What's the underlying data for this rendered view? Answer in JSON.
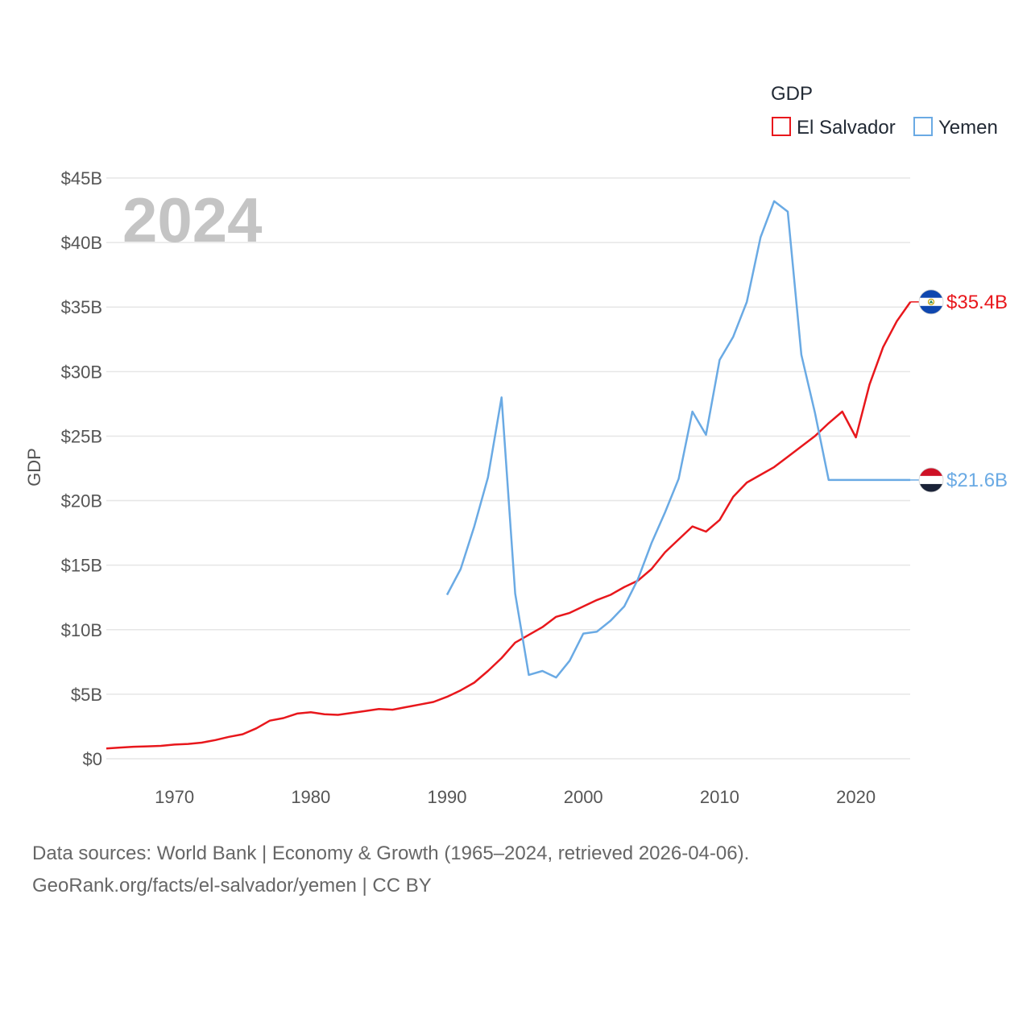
{
  "chart_data": {
    "type": "line",
    "title": "",
    "ylabel": "GDP",
    "xlabel": "",
    "year_display": "2024",
    "legend_title": "GDP",
    "ylim": [
      0,
      45
    ],
    "xlim": [
      1965,
      2024
    ],
    "y_ticks": [
      {
        "value": 0,
        "label": "$0"
      },
      {
        "value": 5,
        "label": "$5B"
      },
      {
        "value": 10,
        "label": "$10B"
      },
      {
        "value": 15,
        "label": "$15B"
      },
      {
        "value": 20,
        "label": "$20B"
      },
      {
        "value": 25,
        "label": "$25B"
      },
      {
        "value": 30,
        "label": "$30B"
      },
      {
        "value": 35,
        "label": "$35B"
      },
      {
        "value": 40,
        "label": "$40B"
      },
      {
        "value": 45,
        "label": "$45B"
      }
    ],
    "x_ticks": [
      {
        "value": 1970,
        "label": "1970"
      },
      {
        "value": 1980,
        "label": "1980"
      },
      {
        "value": 1990,
        "label": "1990"
      },
      {
        "value": 2000,
        "label": "2000"
      },
      {
        "value": 2010,
        "label": "2010"
      },
      {
        "value": 2020,
        "label": "2020"
      }
    ],
    "series": [
      {
        "name": "El Salvador",
        "color": "#e8171c",
        "end_label": "$35.4B",
        "flag": "el-salvador-flag",
        "points": [
          [
            1965,
            0.8
          ],
          [
            1966,
            0.87
          ],
          [
            1967,
            0.93
          ],
          [
            1968,
            0.96
          ],
          [
            1969,
            1.0
          ],
          [
            1970,
            1.1
          ],
          [
            1971,
            1.15
          ],
          [
            1972,
            1.25
          ],
          [
            1973,
            1.45
          ],
          [
            1974,
            1.7
          ],
          [
            1975,
            1.9
          ],
          [
            1976,
            2.35
          ],
          [
            1977,
            2.95
          ],
          [
            1978,
            3.15
          ],
          [
            1979,
            3.5
          ],
          [
            1980,
            3.6
          ],
          [
            1981,
            3.45
          ],
          [
            1982,
            3.4
          ],
          [
            1983,
            3.55
          ],
          [
            1984,
            3.7
          ],
          [
            1985,
            3.85
          ],
          [
            1986,
            3.8
          ],
          [
            1987,
            4.0
          ],
          [
            1988,
            4.2
          ],
          [
            1989,
            4.4
          ],
          [
            1990,
            4.8
          ],
          [
            1991,
            5.3
          ],
          [
            1992,
            5.9
          ],
          [
            1993,
            6.8
          ],
          [
            1994,
            7.8
          ],
          [
            1995,
            9.0
          ],
          [
            1996,
            9.6
          ],
          [
            1997,
            10.2
          ],
          [
            1998,
            11.0
          ],
          [
            1999,
            11.3
          ],
          [
            2000,
            11.8
          ],
          [
            2001,
            12.3
          ],
          [
            2002,
            12.7
          ],
          [
            2003,
            13.3
          ],
          [
            2004,
            13.8
          ],
          [
            2005,
            14.7
          ],
          [
            2006,
            16.0
          ],
          [
            2007,
            17.0
          ],
          [
            2008,
            18.0
          ],
          [
            2009,
            17.6
          ],
          [
            2010,
            18.5
          ],
          [
            2011,
            20.3
          ],
          [
            2012,
            21.4
          ],
          [
            2013,
            22.0
          ],
          [
            2014,
            22.6
          ],
          [
            2015,
            23.4
          ],
          [
            2016,
            24.2
          ],
          [
            2017,
            25.0
          ],
          [
            2018,
            26.0
          ],
          [
            2019,
            26.9
          ],
          [
            2020,
            24.9
          ],
          [
            2021,
            29.0
          ],
          [
            2022,
            31.9
          ],
          [
            2023,
            33.9
          ],
          [
            2024,
            35.4
          ]
        ]
      },
      {
        "name": "Yemen",
        "color": "#6aaae4",
        "end_label": "$21.6B",
        "flag": "yemen-flag",
        "points": [
          [
            1990,
            12.7
          ],
          [
            1991,
            14.7
          ],
          [
            1992,
            18.0
          ],
          [
            1993,
            21.8
          ],
          [
            1994,
            28.0
          ],
          [
            1995,
            12.8
          ],
          [
            1996,
            6.5
          ],
          [
            1997,
            6.8
          ],
          [
            1998,
            6.3
          ],
          [
            1999,
            7.6
          ],
          [
            2000,
            9.7
          ],
          [
            2001,
            9.85
          ],
          [
            2002,
            10.7
          ],
          [
            2003,
            11.8
          ],
          [
            2004,
            13.9
          ],
          [
            2005,
            16.7
          ],
          [
            2006,
            19.1
          ],
          [
            2007,
            21.7
          ],
          [
            2008,
            26.9
          ],
          [
            2009,
            25.1
          ],
          [
            2010,
            30.9
          ],
          [
            2011,
            32.7
          ],
          [
            2012,
            35.4
          ],
          [
            2013,
            40.4
          ],
          [
            2014,
            43.2
          ],
          [
            2015,
            42.4
          ],
          [
            2016,
            31.3
          ],
          [
            2017,
            26.8
          ],
          [
            2018,
            21.6
          ],
          [
            2019,
            21.6
          ],
          [
            2020,
            21.6
          ],
          [
            2021,
            21.6
          ],
          [
            2022,
            21.6
          ],
          [
            2023,
            21.6
          ],
          [
            2024,
            21.6
          ]
        ]
      }
    ]
  },
  "source": {
    "line1": "Data sources: World Bank | Economy & Growth (1965–2024, retrieved 2026-04-06).",
    "line2": "GeoRank.org/facts/el-salvador/yemen | CC BY"
  }
}
